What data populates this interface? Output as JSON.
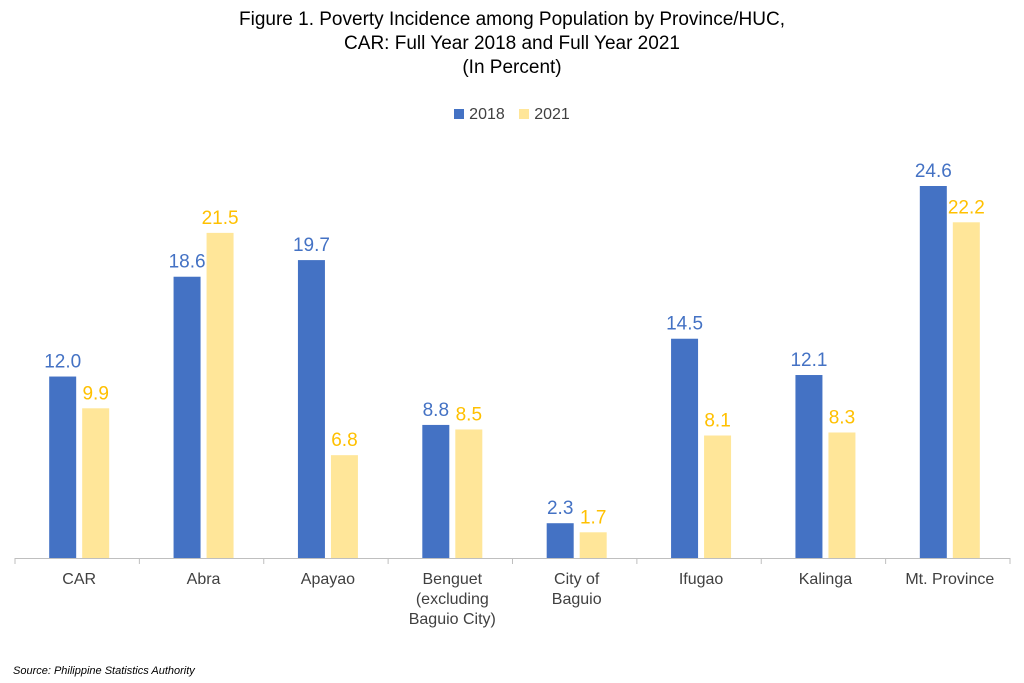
{
  "title": {
    "line1": "Figure 1. Poverty Incidence among Population by Province/HUC,",
    "line2": "CAR: Full Year 2018 and Full Year 2021",
    "line3": "(In Percent)"
  },
  "source": "Source: Philippine Statistics Authority",
  "colors": {
    "series_2018": "#4472C4",
    "series_2021": "#FFE699",
    "label_2018": "#4472C4",
    "label_2021": "#FFC000",
    "axis": "#BFBFBF",
    "tick_text": "#404040"
  },
  "chart_data": {
    "type": "bar",
    "categories": [
      [
        "CAR"
      ],
      [
        "Abra"
      ],
      [
        "Apayao"
      ],
      [
        "Benguet",
        "(excluding",
        "Baguio City)"
      ],
      [
        "City of",
        "Baguio"
      ],
      [
        "Ifugao"
      ],
      [
        "Kalinga"
      ],
      [
        "Mt. Province"
      ]
    ],
    "series": [
      {
        "name": "2018",
        "values": [
          12.0,
          18.6,
          19.7,
          8.8,
          2.3,
          14.5,
          12.1,
          24.6
        ]
      },
      {
        "name": "2021",
        "values": [
          9.9,
          21.5,
          6.8,
          8.5,
          1.7,
          8.1,
          8.3,
          22.2
        ]
      }
    ],
    "ylim": [
      0,
      25
    ],
    "grid": false,
    "legend_position": "top-center",
    "data_labels": true
  }
}
